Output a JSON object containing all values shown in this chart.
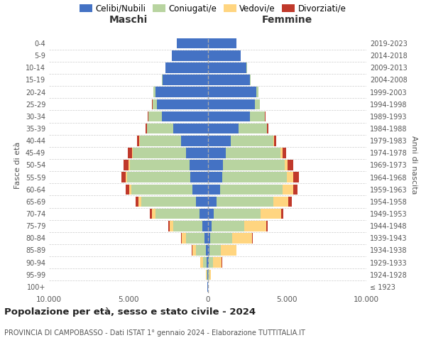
{
  "age_groups": [
    "100+",
    "95-99",
    "90-94",
    "85-89",
    "80-84",
    "75-79",
    "70-74",
    "65-69",
    "60-64",
    "55-59",
    "50-54",
    "45-49",
    "40-44",
    "35-39",
    "30-34",
    "25-29",
    "20-24",
    "15-19",
    "10-14",
    "5-9",
    "0-4"
  ],
  "birth_years": [
    "≤ 1923",
    "1924-1928",
    "1929-1933",
    "1934-1938",
    "1939-1943",
    "1944-1948",
    "1949-1953",
    "1954-1958",
    "1959-1963",
    "1964-1968",
    "1969-1973",
    "1974-1978",
    "1979-1983",
    "1984-1988",
    "1989-1993",
    "1994-1998",
    "1999-2003",
    "2004-2008",
    "2009-2013",
    "2014-2018",
    "2019-2023"
  ],
  "male": {
    "celibi": [
      15,
      35,
      85,
      130,
      220,
      320,
      530,
      730,
      960,
      1100,
      1150,
      1360,
      1700,
      2150,
      2900,
      3200,
      3300,
      2850,
      2650,
      2250,
      1950
    ],
    "coniugati": [
      8,
      45,
      215,
      630,
      1150,
      1870,
      2780,
      3470,
      3870,
      3970,
      3770,
      3370,
      2570,
      1670,
      830,
      265,
      110,
      32,
      20,
      10,
      5
    ],
    "vedovi": [
      5,
      30,
      160,
      210,
      265,
      215,
      215,
      165,
      110,
      88,
      65,
      55,
      35,
      22,
      12,
      6,
      5,
      3,
      2,
      2,
      1
    ],
    "divorziati": [
      1,
      5,
      22,
      35,
      55,
      88,
      115,
      165,
      215,
      295,
      315,
      265,
      165,
      88,
      45,
      22,
      10,
      5,
      3,
      2,
      1
    ]
  },
  "female": {
    "nubili": [
      12,
      35,
      88,
      115,
      178,
      265,
      395,
      565,
      775,
      930,
      980,
      1130,
      1460,
      1960,
      2660,
      2960,
      3060,
      2660,
      2460,
      2060,
      1810
    ],
    "coniugate": [
      8,
      55,
      265,
      730,
      1360,
      2060,
      2960,
      3560,
      3960,
      4060,
      3860,
      3460,
      2660,
      1760,
      930,
      315,
      128,
      42,
      26,
      13,
      5
    ],
    "vedove": [
      18,
      115,
      530,
      945,
      1270,
      1370,
      1270,
      965,
      640,
      380,
      215,
      130,
      65,
      32,
      16,
      8,
      5,
      3,
      2,
      2,
      1
    ],
    "divorziate": [
      1,
      5,
      22,
      42,
      55,
      88,
      162,
      215,
      295,
      365,
      315,
      215,
      130,
      65,
      32,
      16,
      8,
      4,
      2,
      2,
      1
    ]
  },
  "colors": {
    "celibi_nubili": "#4472c4",
    "coniugati": "#b8d4a0",
    "vedovi": "#ffd580",
    "divorziati": "#c0392b"
  },
  "xlim": 10000,
  "xticks": [
    -10000,
    -5000,
    0,
    5000,
    10000
  ],
  "xticklabels": [
    "10.000",
    "5.000",
    "0",
    "5.000",
    "10.000"
  ],
  "xlabel_left": "Maschi",
  "xlabel_right": "Femmine",
  "ylabel_left": "Fasce di età",
  "ylabel_right": "Anni di nascita",
  "title": "Popolazione per età, sesso e stato civile - 2024",
  "subtitle": "PROVINCIA DI CAMPOBASSO - Dati ISTAT 1° gennaio 2024 - Elaborazione TUTTITALIA.IT",
  "legend_labels": [
    "Celibi/Nubili",
    "Coniugati/e",
    "Vedovi/e",
    "Divorziati/e"
  ],
  "bg_color": "#ffffff",
  "grid_color": "#cccccc",
  "text_color": "#555555",
  "bar_height": 0.85
}
